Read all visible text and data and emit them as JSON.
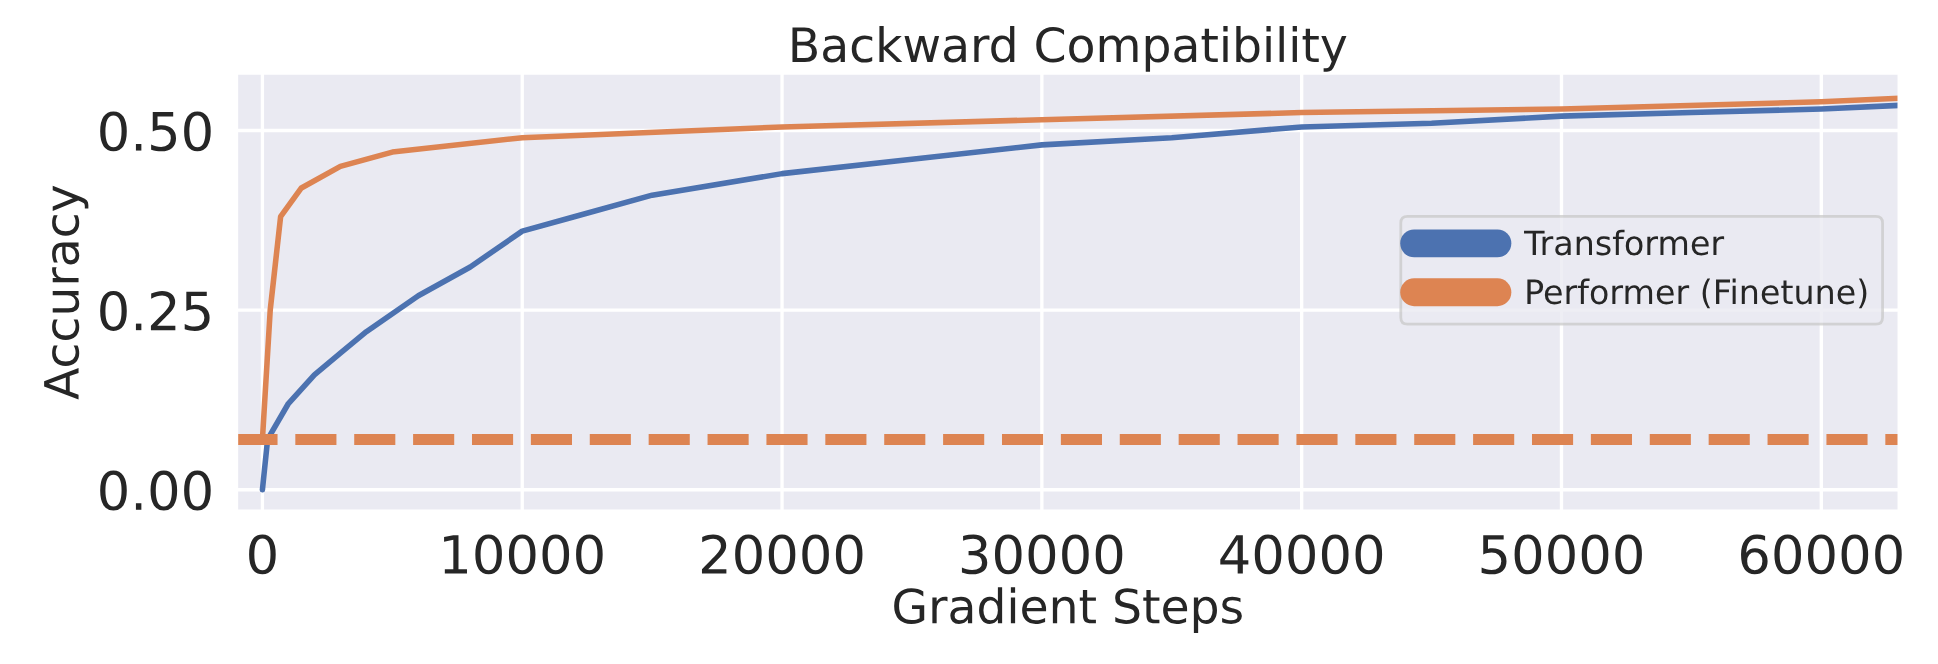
{
  "chart_data": {
    "type": "line",
    "title": "Backward Compatibility",
    "xlabel": "Gradient Steps",
    "ylabel": "Accuracy",
    "series": [
      {
        "name": "Transformer",
        "color": "#4c72b0",
        "x": [
          0,
          200,
          1000,
          2000,
          3000,
          4000,
          6000,
          8000,
          10000,
          12000,
          15000,
          20000,
          25000,
          30000,
          35000,
          40000,
          45000,
          50000,
          55000,
          60000,
          63000
        ],
        "values": [
          0.0,
          0.07,
          0.12,
          0.16,
          0.19,
          0.22,
          0.27,
          0.31,
          0.36,
          0.38,
          0.41,
          0.44,
          0.46,
          0.48,
          0.49,
          0.505,
          0.51,
          0.52,
          0.525,
          0.53,
          0.535
        ]
      },
      {
        "name": "Performer (Finetune)",
        "color": "#dd8452",
        "x": [
          0,
          300,
          700,
          1500,
          3000,
          5000,
          10000,
          20000,
          30000,
          40000,
          50000,
          60000,
          63000
        ],
        "values": [
          0.07,
          0.25,
          0.38,
          0.42,
          0.45,
          0.47,
          0.49,
          0.505,
          0.515,
          0.525,
          0.53,
          0.54,
          0.545
        ]
      }
    ],
    "ref_lines": [
      {
        "axis": "y",
        "value": 0.07,
        "color": "#dd8452",
        "line_style": "dashed"
      }
    ],
    "xlim": [
      -1000,
      63000
    ],
    "xticks": [
      0,
      10000,
      20000,
      30000,
      40000,
      50000,
      60000
    ],
    "ylim": [
      -0.03,
      0.58
    ],
    "yticks": [
      {
        "value": 0.0,
        "label": "0.00"
      },
      {
        "value": 0.25,
        "label": "0.25"
      },
      {
        "value": 0.5,
        "label": "0.50"
      }
    ],
    "grid": true,
    "legend": "right",
    "line_style": "solid",
    "marker": "none"
  }
}
